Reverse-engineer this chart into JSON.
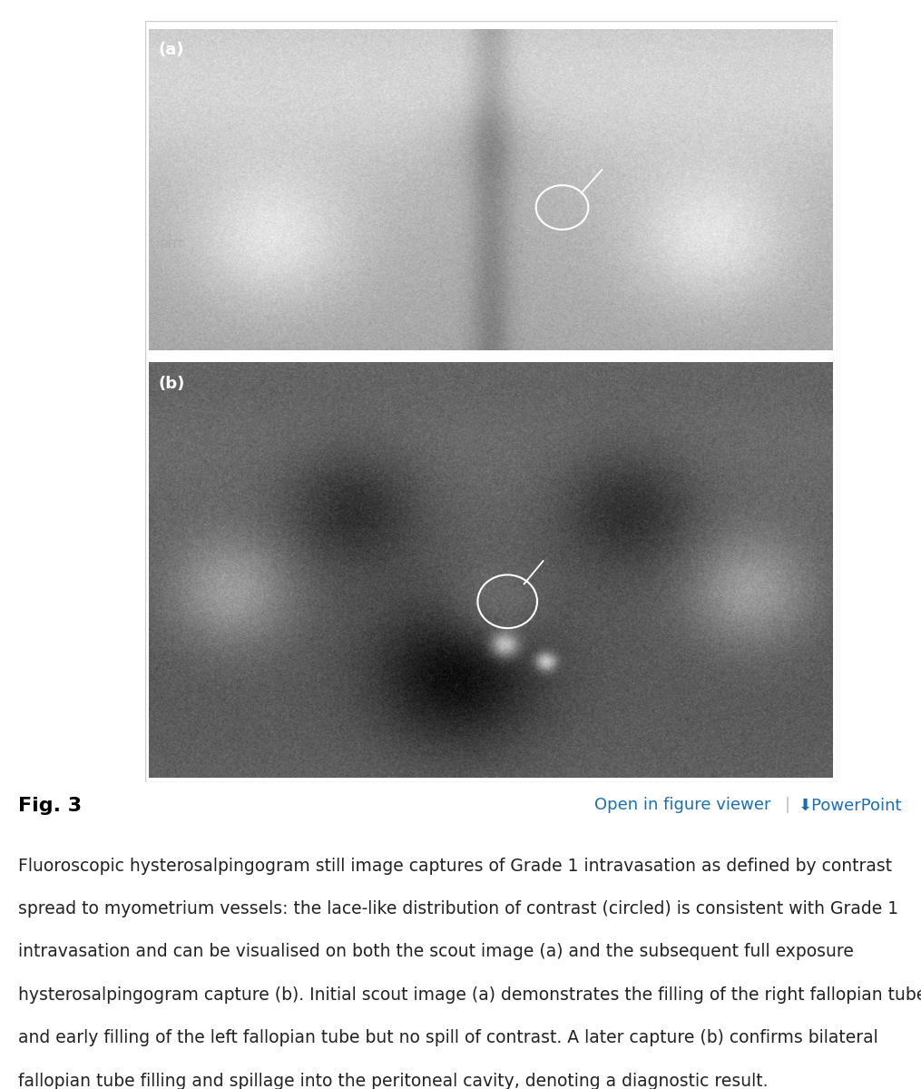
{
  "fig_label": "Fig. 3",
  "fig_label_fontsize": 16,
  "open_viewer_text": "Open in figure viewer",
  "open_viewer_color": "#1a6faf",
  "powerpoint_text": "⬇PowerPoint",
  "powerpoint_color": "#1a6faf",
  "separator_color": "#bbbbbb",
  "caption_line1": "Fluoroscopic hysterosalpingogram still image captures of Grade 1 intravasation as defined by contrast",
  "caption_line2": "spread to myometrium vessels: the lace-like distribution of contrast (circled) is consistent with Grade 1",
  "caption_line3": "intravasation and can be visualised on both the scout image (a) and the subsequent full exposure",
  "caption_line4": "hysterosalpingogram capture (b). Initial scout image (a) demonstrates the filling of the right fallopian tube",
  "caption_line5": "and early filling of the left fallopian tube but no spill of contrast. A later capture (b) confirms bilateral",
  "caption_line6": "fallopian tube filling and spillage into the peritoneal cavity, denoting a diagnostic result.",
  "caption_fontsize": 13.5,
  "caption_color": "#222222",
  "background_color": "#ffffff",
  "panel_border_color": "#cccccc",
  "label_a": "(a)",
  "label_b": "(b)",
  "label_fontsize": 13,
  "label_color": "#ffffff",
  "ght_text": "GHT",
  "ght_color": "#aaaaaa"
}
